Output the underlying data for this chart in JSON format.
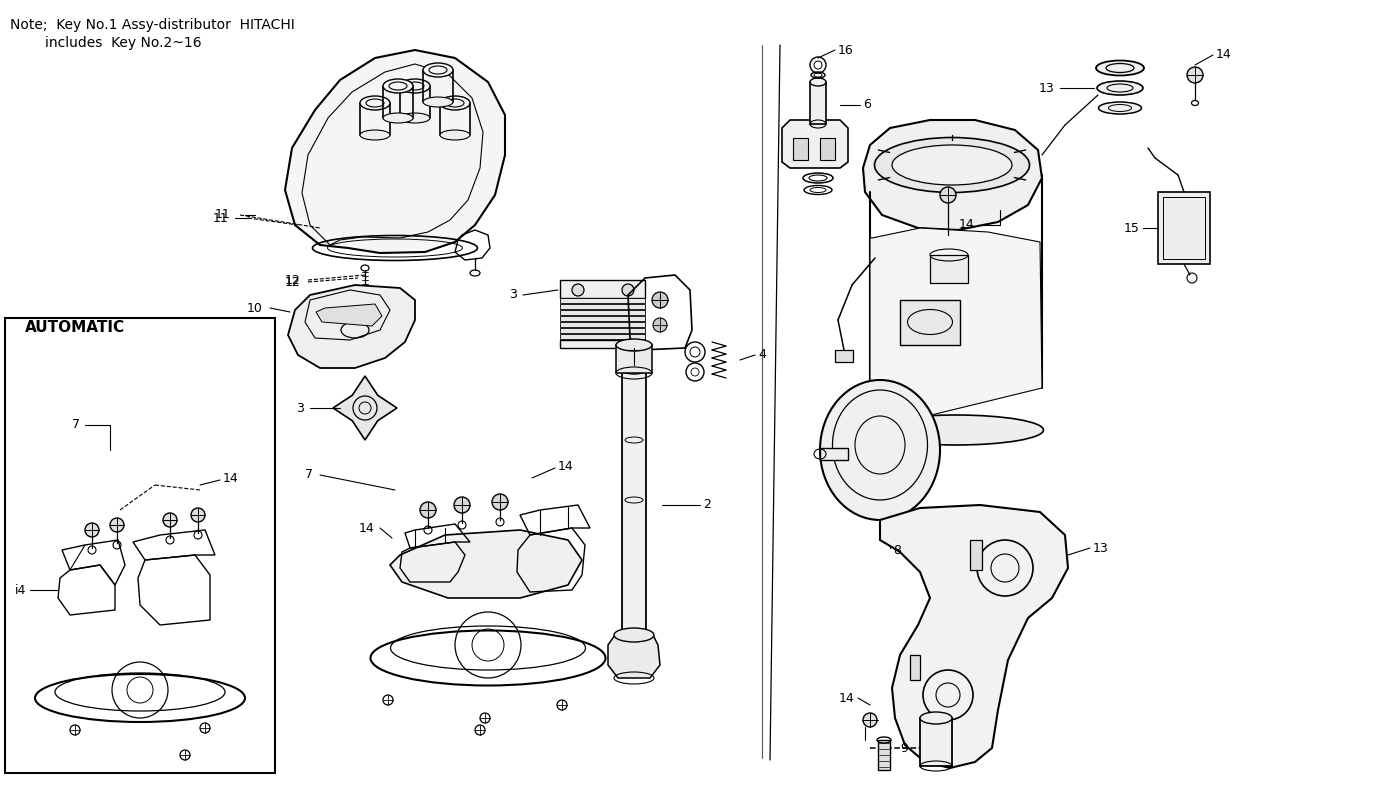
{
  "background_color": "#ffffff",
  "note_line1": "Note;  Key No.1 Assy-distributor  HITACHI",
  "note_line2": "includes  Key No.2~16",
  "automatic_label": "AUTOMATIC",
  "figsize": [
    14,
    8
  ],
  "dpi": 100
}
